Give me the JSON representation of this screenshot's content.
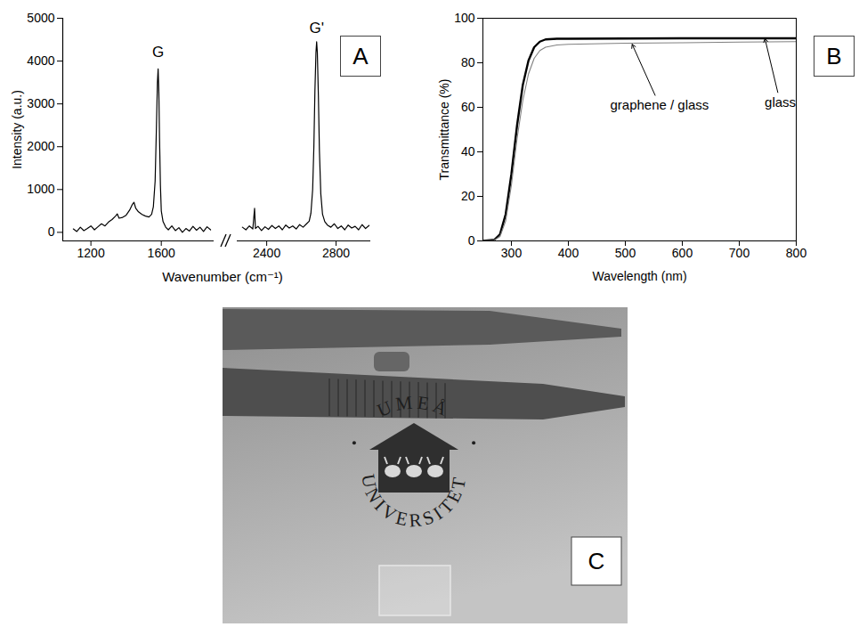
{
  "chart_data": [
    {
      "type": "line",
      "panel": "A",
      "y_label": "Intensity (a.u.)",
      "x_label": "Wavenumber (cm⁻¹)",
      "color": "#000000",
      "ylim": [
        -200,
        5000
      ],
      "yticks": [
        0,
        1000,
        2000,
        3000,
        4000,
        5000
      ],
      "segments": [
        {
          "xlim": [
            1040,
            1900
          ],
          "xticks": [
            1200,
            1600
          ],
          "x": [
            1100,
            1120,
            1140,
            1160,
            1180,
            1200,
            1220,
            1240,
            1260,
            1280,
            1300,
            1320,
            1340,
            1350,
            1360,
            1380,
            1400,
            1420,
            1435,
            1445,
            1455,
            1470,
            1490,
            1510,
            1530,
            1545,
            1555,
            1565,
            1572,
            1578,
            1582,
            1586,
            1590,
            1595,
            1600,
            1610,
            1625,
            1640,
            1660,
            1680,
            1700,
            1720,
            1740,
            1760,
            1780,
            1800,
            1820,
            1840,
            1860,
            1880
          ],
          "values": [
            80,
            20,
            120,
            40,
            90,
            150,
            60,
            130,
            200,
            150,
            240,
            300,
            380,
            430,
            330,
            350,
            400,
            520,
            650,
            700,
            560,
            480,
            420,
            380,
            360,
            420,
            600,
            1200,
            2400,
            3500,
            3820,
            3300,
            2200,
            1100,
            500,
            250,
            120,
            60,
            150,
            40,
            110,
            0,
            90,
            30,
            140,
            50,
            120,
            20,
            130,
            60
          ],
          "annotations": [
            {
              "text": "G",
              "x": 1582,
              "y": 4200
            }
          ]
        },
        {
          "xlim": [
            2230,
            3000
          ],
          "xticks": [
            2400,
            2800
          ],
          "x": [
            2260,
            2280,
            2300,
            2320,
            2330,
            2335,
            2350,
            2370,
            2390,
            2410,
            2430,
            2450,
            2470,
            2490,
            2510,
            2530,
            2550,
            2570,
            2590,
            2610,
            2630,
            2645,
            2655,
            2665,
            2672,
            2678,
            2684,
            2688,
            2692,
            2698,
            2704,
            2712,
            2722,
            2735,
            2750,
            2770,
            2790,
            2810,
            2830,
            2850,
            2870,
            2890,
            2910,
            2930,
            2950,
            2970,
            2990
          ],
          "values": [
            120,
            60,
            150,
            80,
            560,
            90,
            140,
            40,
            130,
            70,
            160,
            90,
            150,
            60,
            170,
            100,
            150,
            80,
            180,
            120,
            200,
            260,
            450,
            1000,
            2000,
            3300,
            4200,
            4450,
            4200,
            3200,
            1900,
            900,
            420,
            250,
            170,
            120,
            200,
            90,
            150,
            60,
            170,
            100,
            140,
            60,
            180,
            90,
            160
          ],
          "annotations": [
            {
              "text": "G'",
              "x": 2688,
              "y": 4780
            }
          ]
        }
      ]
    },
    {
      "type": "line",
      "panel": "B",
      "x_label": "Wavelength (nm)",
      "y_label": "Transmittance (%)",
      "xlim": [
        250,
        800
      ],
      "xticks": [
        300,
        400,
        500,
        600,
        700,
        800
      ],
      "ylim": [
        0,
        100
      ],
      "yticks": [
        0,
        20,
        40,
        60,
        80,
        100
      ],
      "x": [
        250,
        270,
        280,
        290,
        300,
        310,
        320,
        330,
        340,
        350,
        360,
        380,
        400,
        500,
        600,
        700,
        800
      ],
      "series": [
        {
          "name": "glass",
          "color": "#000000",
          "values": [
            0,
            0.5,
            3,
            12,
            30,
            52,
            70,
            81,
            87,
            89.5,
            90.5,
            90.8,
            90.8,
            90.9,
            91,
            91,
            91
          ],
          "label_x": 772,
          "label_y": 62,
          "arrow_x": 745,
          "arrow_y": 90.9
        },
        {
          "name": "graphene / glass",
          "color": "#808080",
          "values": [
            0,
            0.3,
            2,
            9,
            25,
            46,
            63,
            75,
            82,
            85.5,
            87,
            88,
            88.3,
            88.8,
            89,
            89.3,
            89.5
          ],
          "label_x": 560,
          "label_y": 61,
          "arrow_x": 512,
          "arrow_y": 88.3
        }
      ]
    }
  ],
  "photo": {
    "panel": "C",
    "logo_top": "UMEÅ",
    "logo_ring": "UNIVERSITET"
  }
}
